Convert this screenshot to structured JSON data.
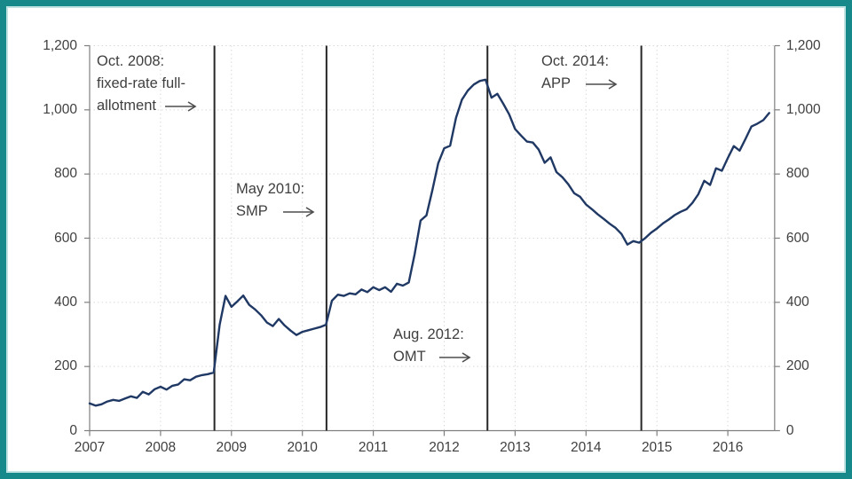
{
  "chart_data": {
    "type": "line",
    "title": "",
    "grid": "dotted",
    "legend": "none",
    "xlim": [
      2007,
      2016.67
    ],
    "ylim": [
      0,
      1200
    ],
    "x_ticks": [
      {
        "year": 2007,
        "label": "2007"
      },
      {
        "year": 2008,
        "label": "2008"
      },
      {
        "year": 2009,
        "label": "2009"
      },
      {
        "year": 2010,
        "label": "2010"
      },
      {
        "year": 2011,
        "label": "2011"
      },
      {
        "year": 2012,
        "label": "2012"
      },
      {
        "year": 2013,
        "label": "2013"
      },
      {
        "year": 2014,
        "label": "2014"
      },
      {
        "year": 2015,
        "label": "2015"
      },
      {
        "year": 2016,
        "label": "2016"
      }
    ],
    "y_ticks": [
      {
        "value": 0,
        "label": "0"
      },
      {
        "value": 200,
        "label": "200"
      },
      {
        "value": 400,
        "label": "400"
      },
      {
        "value": 600,
        "label": "600"
      },
      {
        "value": 800,
        "label": "800"
      },
      {
        "value": 1000,
        "label": "1,000"
      },
      {
        "value": 1200,
        "label": "1,200"
      }
    ],
    "event_lines": [
      {
        "x_year": 2008.76,
        "event": "Oct. 2008: fixed-rate full-allotment"
      },
      {
        "x_year": 2010.34,
        "event": "May 2010: SMP"
      },
      {
        "x_year": 2012.61,
        "event": "Aug. 2012: OMT"
      },
      {
        "x_year": 2014.78,
        "event": "Oct. 2014: APP"
      }
    ],
    "series": [
      {
        "color": "#1f3864",
        "x_start_year": 2007,
        "x_step_months": 1,
        "values": [
          85,
          78,
          82,
          91,
          96,
          93,
          100,
          107,
          102,
          121,
          113,
          129,
          137,
          128,
          140,
          144,
          160,
          157,
          168,
          173,
          176,
          181,
          330,
          420,
          386,
          403,
          421,
          392,
          378,
          360,
          337,
          326,
          348,
          328,
          312,
          298,
          308,
          313,
          318,
          323,
          330,
          405,
          424,
          420,
          428,
          425,
          440,
          432,
          447,
          438,
          447,
          433,
          458,
          452,
          462,
          550,
          655,
          671,
          750,
          834,
          880,
          888,
          975,
          1032,
          1060,
          1079,
          1090,
          1094,
          1038,
          1050,
          1019,
          986,
          940,
          920,
          901,
          898,
          876,
          835,
          852,
          806,
          790,
          768,
          740,
          729,
          705,
          690,
          674,
          660,
          645,
          632,
          613,
          580,
          591,
          586,
          600,
          617,
          630,
          646,
          658,
          672,
          682,
          690,
          710,
          737,
          779,
          766,
          818,
          810,
          850,
          887,
          873,
          910,
          948,
          957,
          968,
          990
        ]
      }
    ]
  },
  "annotations": {
    "oct2008": {
      "line1": "Oct. 2008:",
      "line2": "fixed-rate full-",
      "line3": "allotment"
    },
    "may2010": {
      "line1": "May 2010:",
      "line2": "SMP"
    },
    "aug2012": {
      "line1": "Aug. 2012:",
      "line2": "OMT"
    },
    "oct2014": {
      "line1": "Oct. 2014:",
      "line2": "APP"
    }
  },
  "colors": {
    "frame_border": "#17898a",
    "series_line": "#1f3864",
    "event_line": "#262626",
    "gridline": "#d9d9d9",
    "axis_line": "#7f7f7f",
    "text": "#3f3f3f",
    "arrow": "#4d4d4d"
  }
}
